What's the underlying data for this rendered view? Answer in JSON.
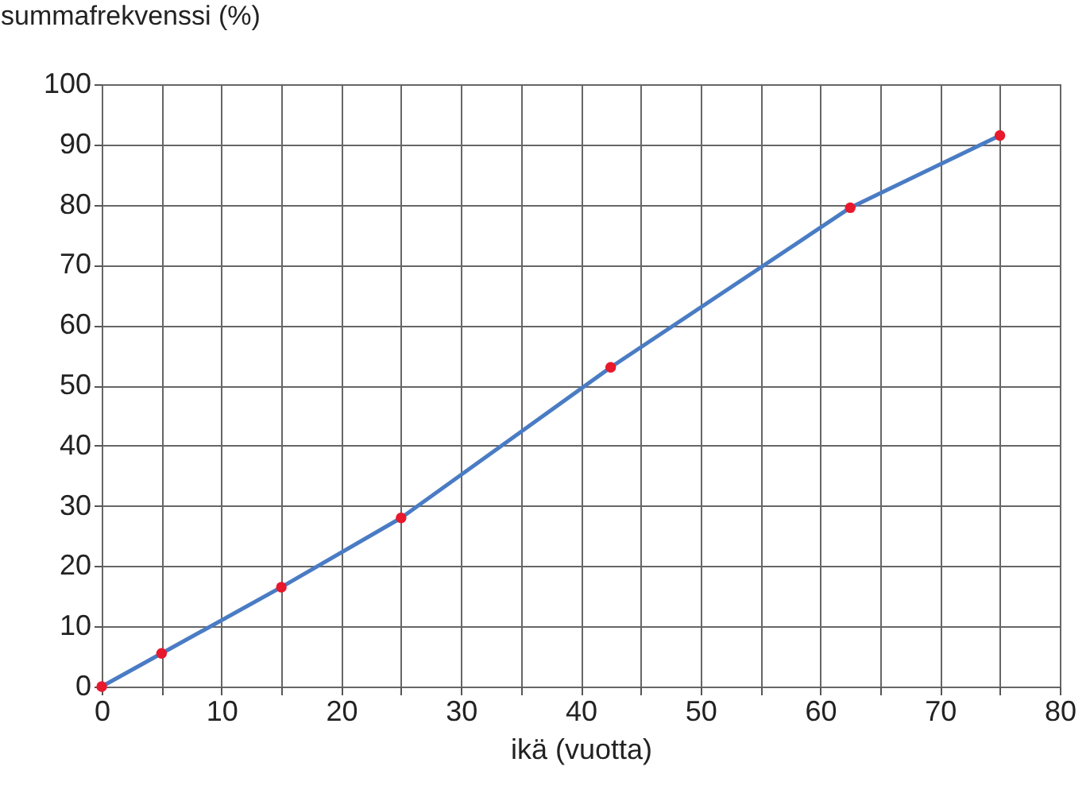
{
  "chart_data": {
    "type": "line",
    "xlabel": "ikä (vuotta)",
    "ylabel": "summafrekvenssi (%)",
    "x": [
      0,
      5,
      15,
      25,
      42.5,
      62.5,
      75
    ],
    "series": [
      {
        "color": "#4a7cc4",
        "values": [
          0,
          5.5,
          16.5,
          28,
          53,
          79.5,
          91.5
        ]
      },
      {
        "type": "scatter",
        "color": "#e8192c",
        "values": [
          0,
          5.5,
          16.5,
          28,
          53,
          79.5,
          91.5
        ]
      }
    ],
    "xlim": [
      0,
      80
    ],
    "xticks": [
      0,
      10,
      20,
      30,
      40,
      50,
      60,
      70,
      80
    ],
    "ylim": [
      0,
      100
    ],
    "yticks": [
      0,
      10,
      20,
      30,
      40,
      50,
      60,
      70,
      80,
      90,
      100
    ],
    "grid": true
  }
}
